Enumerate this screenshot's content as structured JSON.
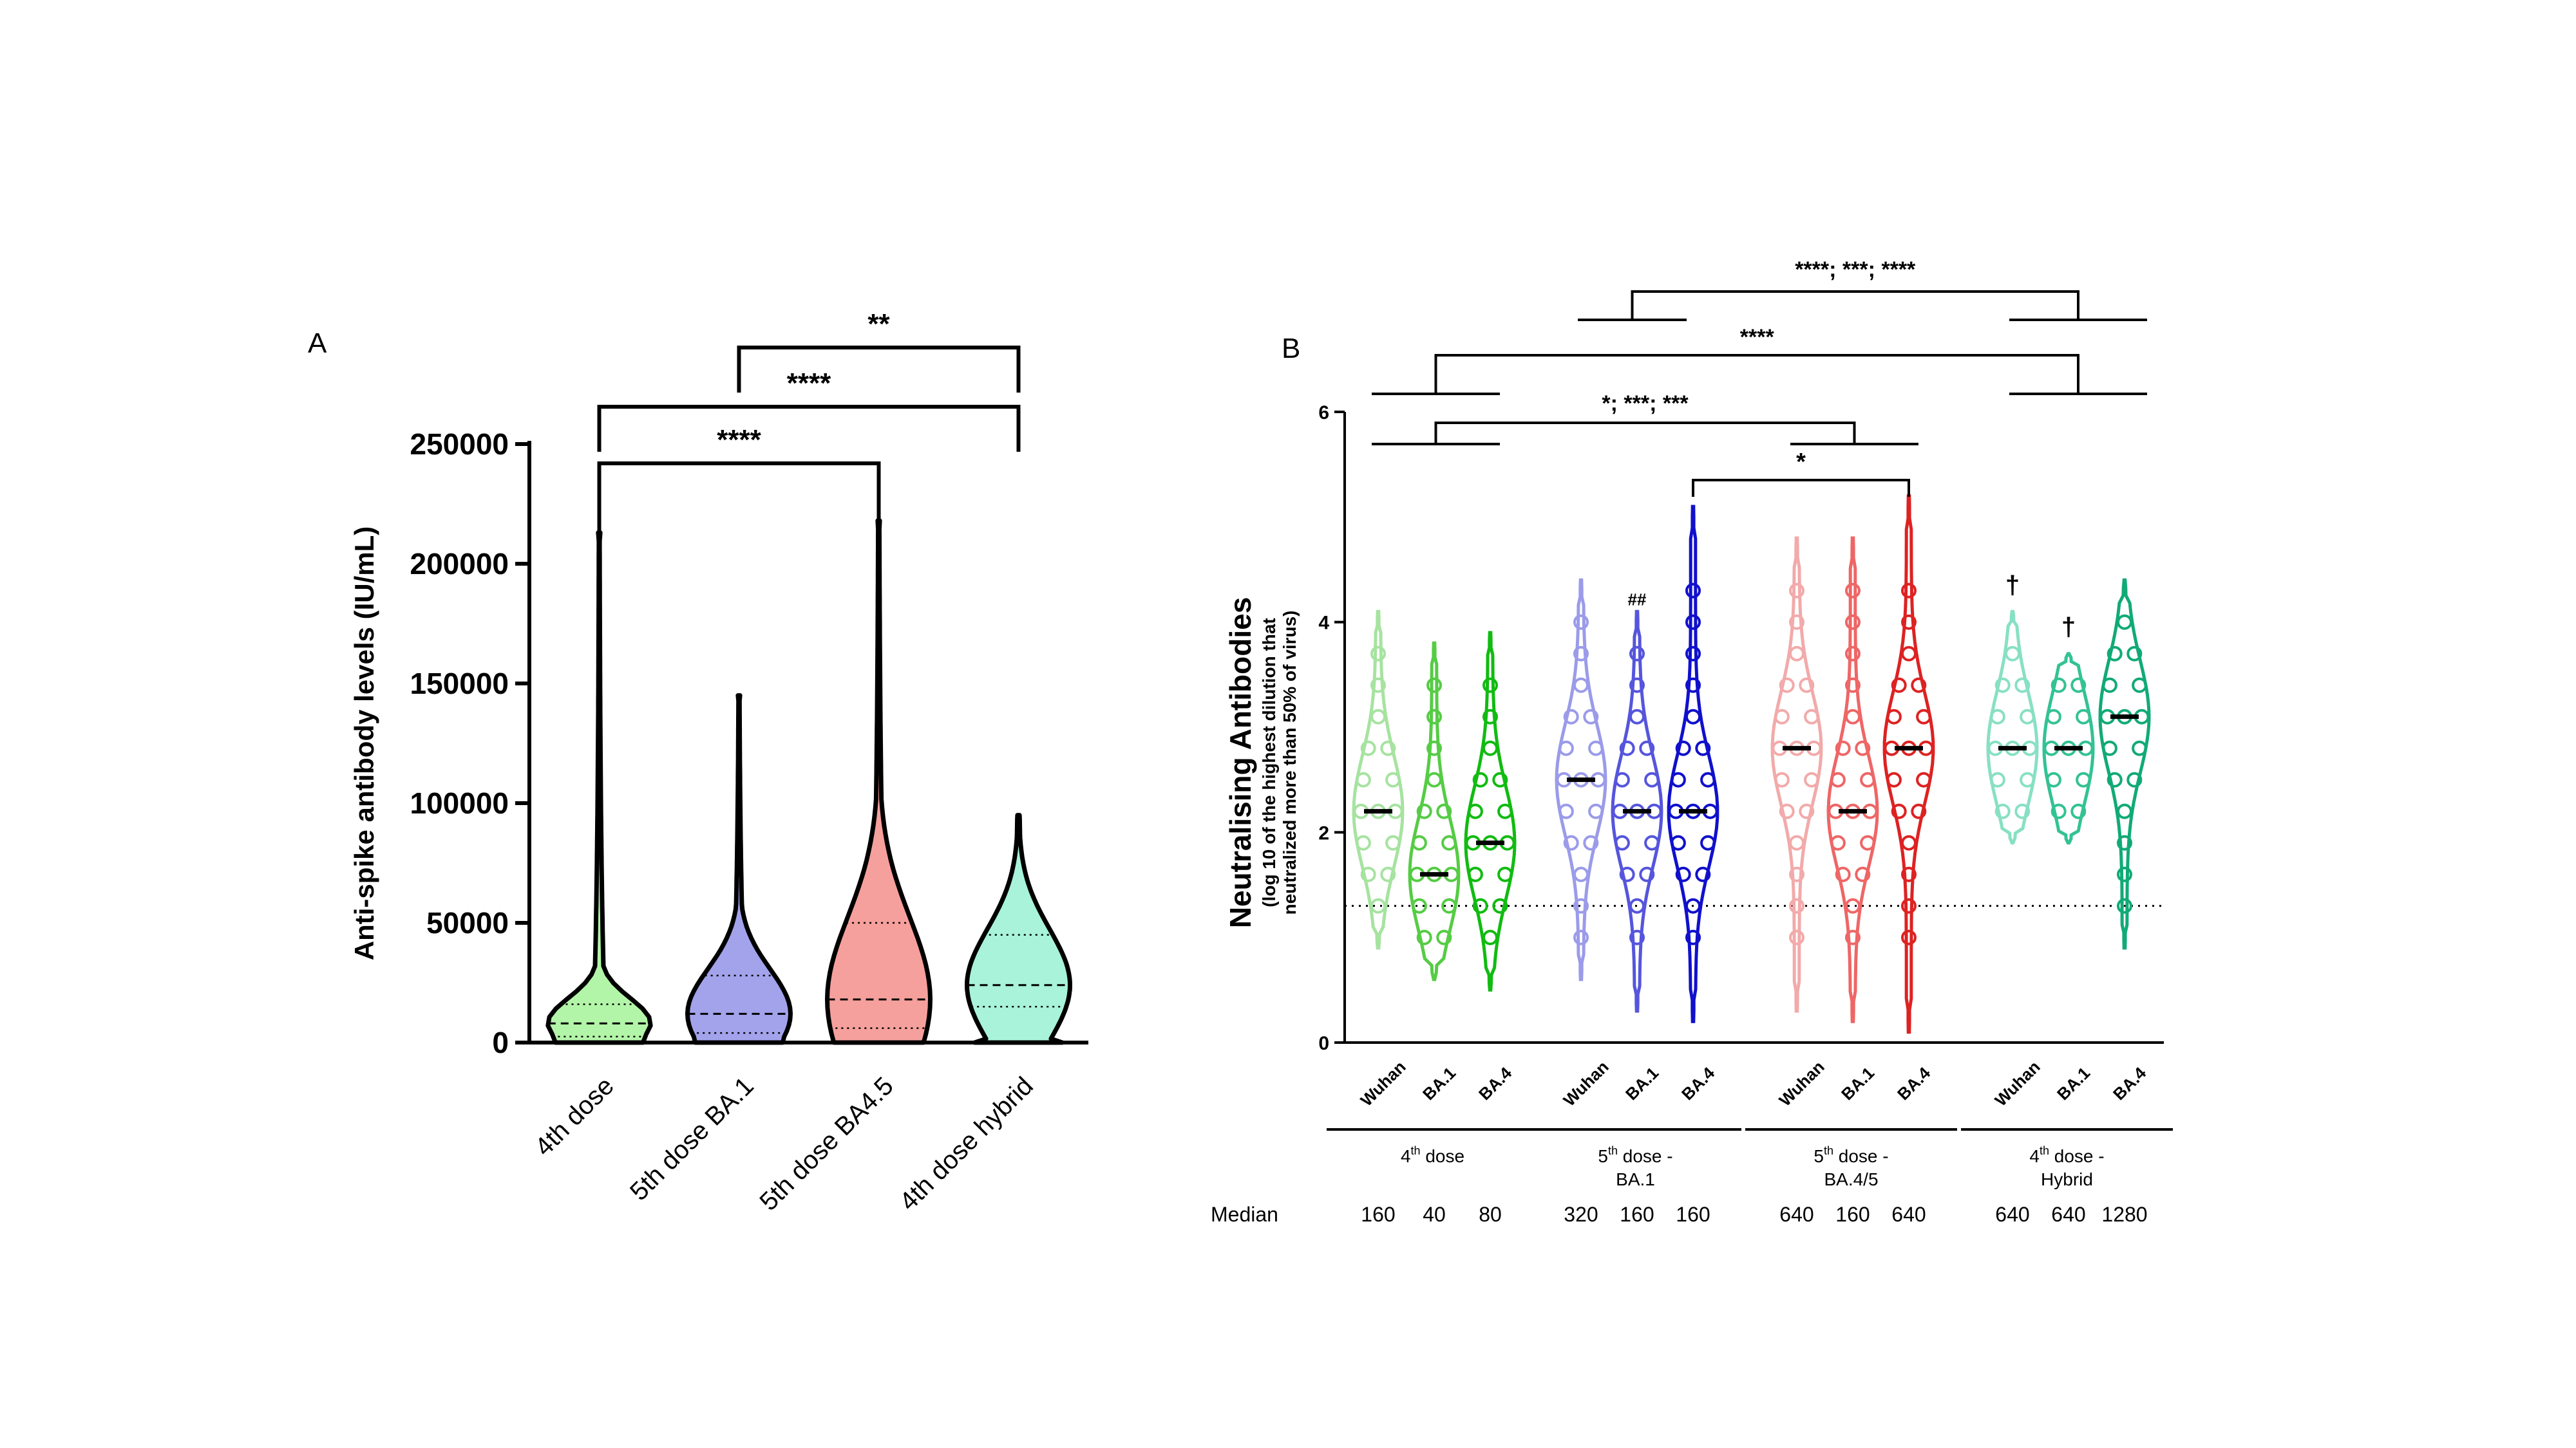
{
  "chart_data": [
    {
      "type": "violin",
      "panel_label": "A",
      "title": "",
      "xlabel": "",
      "ylabel": "Anti-spike antibody levels (IU/mL)",
      "ylim": [
        0,
        250000
      ],
      "yticks": [
        "0",
        "50000",
        "100000",
        "150000",
        "200000",
        "250000"
      ],
      "categories": [
        "4th dose",
        "5th dose BA.1",
        "5th dose BA4.5",
        "4th dose hybrid"
      ],
      "colors": [
        "#b3f5a8",
        "#a3a3ec",
        "#f5a09c",
        "#a8f3da"
      ],
      "series": [
        {
          "name": "4th dose",
          "median": 8000,
          "q1": 2500,
          "q3": 16000,
          "max": 213000
        },
        {
          "name": "5th dose BA.1",
          "median": 12000,
          "q1": 4000,
          "q3": 28000,
          "max": 145000
        },
        {
          "name": "5th dose BA4.5",
          "median": 18000,
          "q1": 6000,
          "q3": 50000,
          "max": 218000
        },
        {
          "name": "4th dose hybrid",
          "median": 24000,
          "q1": 15000,
          "q3": 45000,
          "max": 95000
        }
      ],
      "significance": [
        {
          "from": "5th dose BA.1",
          "to": "4th dose hybrid",
          "label": "**"
        },
        {
          "from": "4th dose",
          "to": "4th dose hybrid",
          "label": "****"
        },
        {
          "from": "4th dose",
          "to": "5th dose BA4.5",
          "label": "****"
        }
      ]
    },
    {
      "type": "violin",
      "panel_label": "B",
      "title": "",
      "ylabel": "Neutralising Antibodies",
      "ylabel_sub": [
        "(log 10 of the highest dilution that",
        "neutralized more than 50% of virus)"
      ],
      "ylim": [
        0,
        6
      ],
      "yticks": [
        "0",
        "2",
        "4",
        "6"
      ],
      "threshold": 1.3,
      "variants": [
        "Wuhan",
        "BA.1",
        "BA.4"
      ],
      "groups": [
        {
          "label_main": "4",
          "label_sup": "th",
          "label_rest": " dose",
          "label_line2": "",
          "colors": [
            "#a6e3a0",
            "#55cc44",
            "#11bb11"
          ],
          "medians_label": [
            "160",
            "40",
            "80"
          ],
          "medians": [
            2.2,
            1.6,
            1.9
          ],
          "mins": [
            0.9,
            0.6,
            0.5
          ],
          "maxs": [
            4.1,
            3.8,
            3.9
          ],
          "annotations": [
            "",
            "",
            ""
          ]
        },
        {
          "label_main": "5",
          "label_sup": "th",
          "label_rest": " dose -",
          "label_line2": "BA.1",
          "colors": [
            "#9b9bea",
            "#5555dd",
            "#1010cc"
          ],
          "medians_label": [
            "320",
            "160",
            "160"
          ],
          "medians": [
            2.5,
            2.2,
            2.2
          ],
          "mins": [
            0.6,
            0.3,
            0.2
          ],
          "maxs": [
            4.4,
            4.1,
            5.1
          ],
          "annotations": [
            "",
            "##",
            ""
          ]
        },
        {
          "label_main": "5",
          "label_sup": "th",
          "label_rest": " dose -",
          "label_line2": "BA.4/5",
          "colors": [
            "#f2aaaa",
            "#ee6666",
            "#dd2222"
          ],
          "medians_label": [
            "640",
            "160",
            "640"
          ],
          "medians": [
            2.8,
            2.2,
            2.8
          ],
          "mins": [
            0.3,
            0.2,
            0.1
          ],
          "maxs": [
            4.8,
            4.8,
            5.2
          ],
          "annotations": [
            "",
            "",
            ""
          ]
        },
        {
          "label_main": "4",
          "label_sup": "th",
          "label_rest": " dose -",
          "label_line2": "Hybrid",
          "colors": [
            "#88e0c4",
            "#33c294",
            "#11aa77"
          ],
          "medians_label": [
            "640",
            "640",
            "1280"
          ],
          "medians": [
            2.8,
            2.8,
            3.1
          ],
          "mins": [
            1.9,
            1.9,
            0.9
          ],
          "maxs": [
            4.1,
            3.7,
            4.4
          ],
          "annotations": [
            "†",
            "†",
            ""
          ]
        }
      ],
      "median_row_label": "Median",
      "significance": [
        {
          "label": "****; ***; ****",
          "between": [
            "5th dose - BA.1",
            "4th dose - Hybrid"
          ]
        },
        {
          "label": "****",
          "between": [
            "4th dose",
            "4th dose - Hybrid"
          ]
        },
        {
          "label": "*; ***; ***",
          "between": [
            "4th dose",
            "5th dose - BA.4/5"
          ]
        },
        {
          "label": "*",
          "between": [
            "BA.4 (5th dose - BA.1)",
            "BA.4 (5th dose - BA.4/5)"
          ]
        }
      ]
    }
  ]
}
